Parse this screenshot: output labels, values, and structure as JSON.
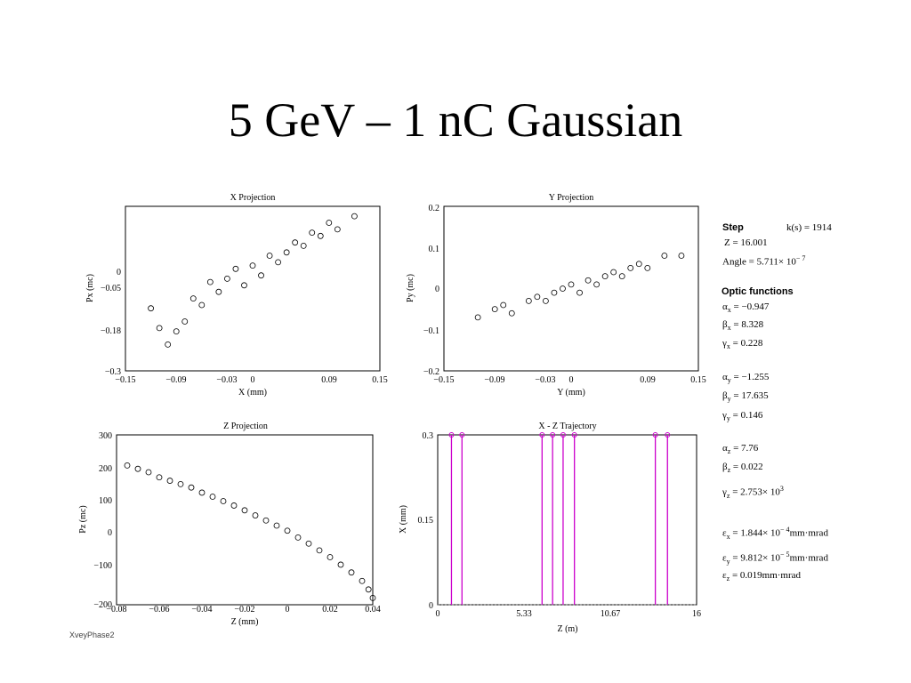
{
  "slide": {
    "title": "5 GeV – 1 nC Gaussian",
    "caption": "XveyPhase2"
  },
  "side_panel": {
    "step_heading": "Step",
    "step_k": "k(s) = 1914",
    "z_value": "Z = 16.001",
    "angle_prefix": "Angle = 5.711× 10",
    "angle_exp": "− 7",
    "optic_heading": "Optic functions",
    "alpha_x": "= −0.947",
    "beta_x": "= 8.328",
    "gamma_x": "= 0.228",
    "alpha_y": "= −1.255",
    "beta_y": "= 17.635",
    "gamma_y": "= 0.146",
    "alpha_z": "= 7.76",
    "beta_z": "= 0.022",
    "gamma_z_prefix": "= 2.753× 10",
    "gamma_z_exp": "3",
    "eps_x_prefix": "= 1.844× 10",
    "eps_x_exp": "− 4",
    "eps_x_unit": "mm·mrad",
    "eps_y_prefix": "= 9.812× 10",
    "eps_y_exp": "− 5",
    "eps_y_unit": "mm·mrad",
    "eps_z": "= 0.019mm·mrad",
    "sub_x": "x",
    "sub_y": "y",
    "sub_z": "z"
  },
  "chart_data": [
    {
      "type": "scatter",
      "title": "X Projection",
      "xlabel": "X (mm)",
      "ylabel": "Px (mc)",
      "xlim": [
        -0.15,
        0.15
      ],
      "ylim": [
        -0.3,
        0.2
      ],
      "x_ticks": [
        "−0.15",
        "−0.09",
        "−0.03",
        "0",
        "0.09",
        "0.15"
      ],
      "y_ticks": [
        "−0.3",
        "−0.18",
        "−0.05",
        "0"
      ],
      "series": [
        {
          "values": [
            [
              -0.12,
              -0.11
            ],
            [
              -0.11,
              -0.17
            ],
            [
              -0.1,
              -0.22
            ],
            [
              -0.09,
              -0.18
            ],
            [
              -0.08,
              -0.15
            ],
            [
              -0.07,
              -0.08
            ],
            [
              -0.06,
              -0.1
            ],
            [
              -0.05,
              -0.03
            ],
            [
              -0.04,
              -0.06
            ],
            [
              -0.03,
              -0.02
            ],
            [
              -0.02,
              0.01
            ],
            [
              -0.01,
              -0.04
            ],
            [
              0,
              0.02
            ],
            [
              0.01,
              -0.01
            ],
            [
              0.02,
              0.05
            ],
            [
              0.03,
              0.03
            ],
            [
              0.04,
              0.06
            ],
            [
              0.05,
              0.09
            ],
            [
              0.06,
              0.08
            ],
            [
              0.07,
              0.12
            ],
            [
              0.08,
              0.11
            ],
            [
              0.09,
              0.15
            ],
            [
              0.1,
              0.13
            ],
            [
              0.12,
              0.17
            ]
          ]
        }
      ]
    },
    {
      "type": "scatter",
      "title": "Y Projection",
      "xlabel": "Y (mm)",
      "ylabel": "Py (mc)",
      "xlim": [
        -0.15,
        0.15
      ],
      "ylim": [
        -0.2,
        0.2
      ],
      "x_ticks": [
        "−0.15",
        "−0.09",
        "−0.03",
        "0",
        "0.09",
        "0.15"
      ],
      "y_ticks": [
        "−0.2",
        "−0.1",
        "0",
        "0.1",
        "0.2"
      ],
      "series": [
        {
          "values": [
            [
              -0.11,
              -0.07
            ],
            [
              -0.09,
              -0.05
            ],
            [
              -0.08,
              -0.04
            ],
            [
              -0.07,
              -0.06
            ],
            [
              -0.05,
              -0.03
            ],
            [
              -0.04,
              -0.02
            ],
            [
              -0.03,
              -0.03
            ],
            [
              -0.02,
              -0.01
            ],
            [
              -0.01,
              0
            ],
            [
              0,
              0.01
            ],
            [
              0.01,
              -0.01
            ],
            [
              0.02,
              0.02
            ],
            [
              0.03,
              0.01
            ],
            [
              0.04,
              0.03
            ],
            [
              0.05,
              0.04
            ],
            [
              0.06,
              0.03
            ],
            [
              0.07,
              0.05
            ],
            [
              0.08,
              0.06
            ],
            [
              0.09,
              0.05
            ],
            [
              0.11,
              0.08
            ],
            [
              0.13,
              0.08
            ]
          ]
        }
      ]
    },
    {
      "type": "scatter",
      "title": "Z Projection",
      "xlabel": "Z (mm)",
      "ylabel": "Pz (mc)",
      "xlim": [
        -0.08,
        0.04
      ],
      "ylim": [
        -200,
        300
      ],
      "x_ticks": [
        "−0.08",
        "−0.06",
        "−0.04",
        "−0.02",
        "0",
        "0.02",
        "0.04"
      ],
      "y_ticks": [
        "−200",
        "−100",
        "0",
        "100",
        "200",
        "300"
      ],
      "series": [
        {
          "values": [
            [
              -0.075,
              210
            ],
            [
              -0.07,
              200
            ],
            [
              -0.065,
              190
            ],
            [
              -0.06,
              175
            ],
            [
              -0.055,
              165
            ],
            [
              -0.05,
              155
            ],
            [
              -0.045,
              145
            ],
            [
              -0.04,
              130
            ],
            [
              -0.035,
              118
            ],
            [
              -0.03,
              105
            ],
            [
              -0.025,
              92
            ],
            [
              -0.02,
              78
            ],
            [
              -0.015,
              63
            ],
            [
              -0.01,
              48
            ],
            [
              -0.005,
              33
            ],
            [
              0,
              18
            ],
            [
              0.005,
              -2
            ],
            [
              0.01,
              -20
            ],
            [
              0.015,
              -40
            ],
            [
              0.02,
              -60
            ],
            [
              0.025,
              -82
            ],
            [
              0.03,
              -105
            ],
            [
              0.035,
              -130
            ],
            [
              0.038,
              -155
            ],
            [
              0.04,
              -180
            ]
          ]
        }
      ]
    },
    {
      "type": "stem",
      "title": "X - Z Trajectory",
      "xlabel": "Z (m)",
      "ylabel": "X (mm)",
      "xlim": [
        0,
        16
      ],
      "ylim": [
        0,
        0.3
      ],
      "x_ticks": [
        "0",
        "5.33",
        "10.67",
        "16"
      ],
      "y_ticks": [
        "0",
        "0.15",
        "0.3"
      ],
      "color": "#cc00cc",
      "series": [
        {
          "values": [
            [
              0.85,
              0.3
            ],
            [
              1.5,
              0.3
            ],
            [
              6.45,
              0.3
            ],
            [
              7.1,
              0.3
            ],
            [
              7.75,
              0.3
            ],
            [
              8.45,
              0.3
            ],
            [
              13.45,
              0.3
            ],
            [
              14.2,
              0.3
            ]
          ]
        }
      ]
    }
  ]
}
